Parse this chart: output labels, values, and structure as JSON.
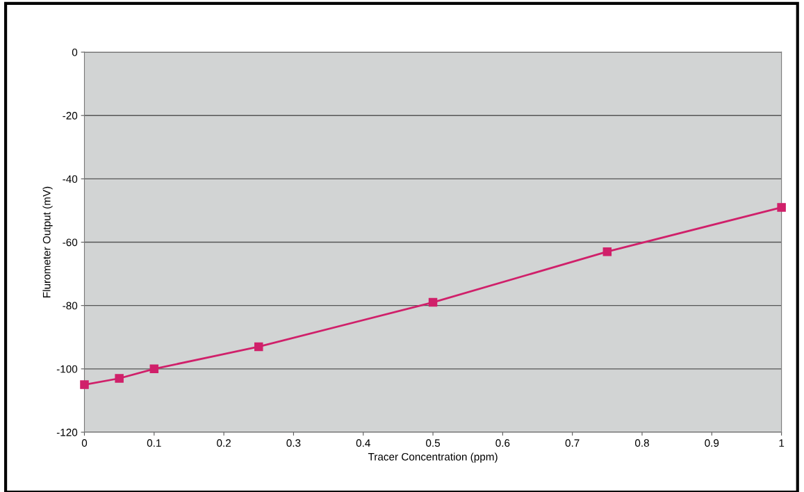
{
  "chart_data": {
    "type": "line",
    "xlabel": "Tracer Concentration (ppm)",
    "ylabel": "Flurometer Output (mV)",
    "x": [
      0,
      0.05,
      0.1,
      0.25,
      0.5,
      0.75,
      1
    ],
    "series": [
      {
        "color": "#d0206a",
        "values": [
          -105,
          -103,
          -100,
          -93,
          -79,
          -63,
          -49
        ]
      }
    ],
    "xlim": [
      0,
      1
    ],
    "xticks": [
      0,
      0.1,
      0.2,
      0.3,
      0.4,
      0.5,
      0.6,
      0.7,
      0.8,
      0.9,
      1
    ],
    "ylim": [
      -120,
      0
    ],
    "yticks": [
      -120,
      -100,
      -80,
      -60,
      -40,
      -20,
      0
    ],
    "grid": "y",
    "marker": "square",
    "line_style": "solid",
    "legend": false
  }
}
